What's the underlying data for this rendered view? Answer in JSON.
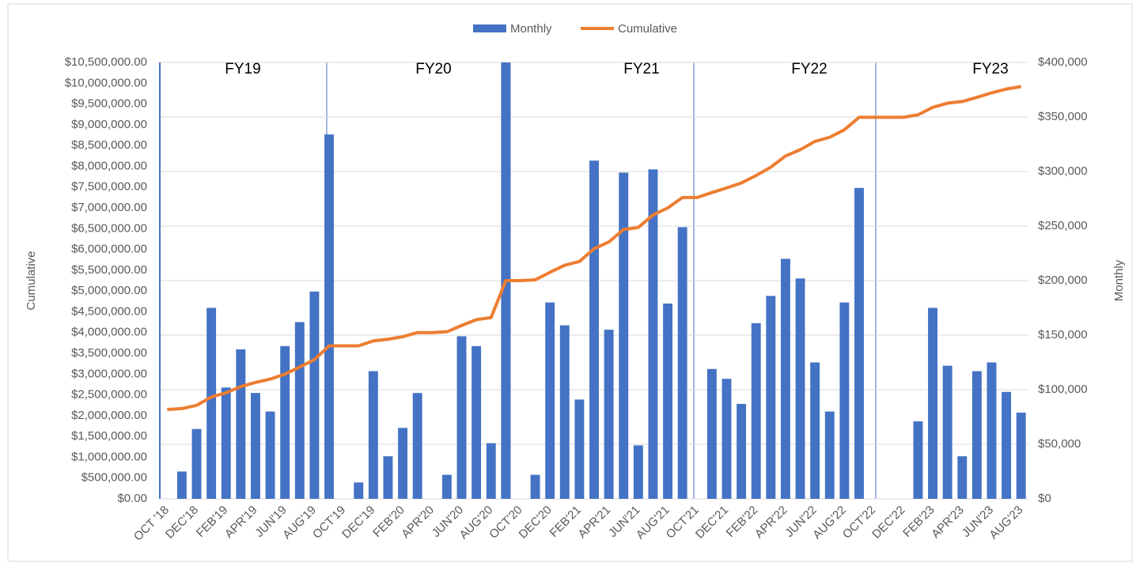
{
  "chart_data": {
    "type": "bar_line",
    "categories": [
      "OCT '18",
      null,
      "DEC'18",
      null,
      "FEB'19",
      null,
      "APR'19",
      null,
      "JUN'19",
      null,
      "AUG'19",
      null,
      "OCT'19",
      null,
      "DEC'19",
      null,
      "FEB'20",
      null,
      "APR'20",
      null,
      "JUN'20",
      null,
      "AUG'20",
      null,
      "OCT'20",
      null,
      "DEC'20",
      null,
      "FEB'21",
      null,
      "APR'21",
      null,
      "JUN'21",
      null,
      "AUG'21",
      null,
      "OCT'21",
      null,
      "DEC'21",
      null,
      "FEB'22",
      null,
      "APR'22",
      null,
      "JUN'22",
      null,
      "AUG'22",
      null,
      "OCT'22",
      null,
      "DEC'22",
      null,
      "FEB'23",
      null,
      "APR'23",
      null,
      "JUN'23",
      null,
      "AUG'23"
    ],
    "series": [
      {
        "name": "Monthly",
        "color": "#4472c4",
        "kind": "bar",
        "axis": "y2",
        "values": [
          0,
          25000,
          64000,
          175000,
          102000,
          137000,
          97000,
          80000,
          140000,
          162000,
          190000,
          334000,
          0,
          15000,
          117000,
          39000,
          65000,
          97000,
          0,
          22000,
          149000,
          140000,
          51000,
          400000,
          0,
          22000,
          180000,
          159000,
          91000,
          310000,
          155000,
          299000,
          49000,
          302000,
          179000,
          249000,
          0,
          119000,
          110000,
          87000,
          161000,
          186000,
          220000,
          202000,
          125000,
          80000,
          180000,
          285000,
          0,
          0,
          0,
          71000,
          175000,
          122000,
          39000,
          117000,
          125000,
          98000,
          79000
        ]
      },
      {
        "name": "Cumulative",
        "color": "#ed7d31",
        "kind": "line",
        "values": [
          2150000,
          2170000,
          2250000,
          2450000,
          2550000,
          2700000,
          2800000,
          2880000,
          3000000,
          3170000,
          3350000,
          3680000,
          3680000,
          3680000,
          3800000,
          3840000,
          3900000,
          4000000,
          4000000,
          4020000,
          4170000,
          4310000,
          4360000,
          5250000,
          5250000,
          5270000,
          5450000,
          5620000,
          5710000,
          6020000,
          6180000,
          6480000,
          6530000,
          6830000,
          7000000,
          7250000,
          7250000,
          7370000,
          7480000,
          7600000,
          7780000,
          7980000,
          8250000,
          8400000,
          8600000,
          8700000,
          8880000,
          9180000,
          9180000,
          9180000,
          9180000,
          9240000,
          9420000,
          9520000,
          9560000,
          9660000,
          9770000,
          9860000,
          9920000
        ]
      }
    ],
    "ylabel": "Cumulative",
    "y2label": "Monthly",
    "ylim": [
      0,
      10500000
    ],
    "yticks": [
      {
        "value": 0,
        "label": "$0.00"
      },
      {
        "value": 500000,
        "label": "$500,000.00"
      },
      {
        "value": 1000000,
        "label": "$1,000,000.00"
      },
      {
        "value": 1500000,
        "label": "$1,500,000.00"
      },
      {
        "value": 2000000,
        "label": "$2,000,000.00"
      },
      {
        "value": 2500000,
        "label": "$2,500,000.00"
      },
      {
        "value": 3000000,
        "label": "$3,000,000.00"
      },
      {
        "value": 3500000,
        "label": "$3,500,000.00"
      },
      {
        "value": 4000000,
        "label": "$4,000,000.00"
      },
      {
        "value": 4500000,
        "label": "$4,500,000.00"
      },
      {
        "value": 5000000,
        "label": "$5,000,000.00"
      },
      {
        "value": 5500000,
        "label": "$5,500,000.00"
      },
      {
        "value": 6000000,
        "label": "$6,000,000.00"
      },
      {
        "value": 6500000,
        "label": "$6,500,000.00"
      },
      {
        "value": 7000000,
        "label": "$7,000,000.00"
      },
      {
        "value": 7500000,
        "label": "$7,500,000.00"
      },
      {
        "value": 8000000,
        "label": "$8,000,000.00"
      },
      {
        "value": 8500000,
        "label": "$8,500,000.00"
      },
      {
        "value": 9000000,
        "label": "$9,000,000.00"
      },
      {
        "value": 9500000,
        "label": "$9,500,000.00"
      },
      {
        "value": 10000000,
        "label": "$10,000,000.00"
      },
      {
        "value": 10500000,
        "label": "$10,500,000.00"
      }
    ],
    "y2lim": [
      0,
      400000
    ],
    "y2ticks": [
      {
        "value": 0,
        "label": "$0"
      },
      {
        "value": 50000,
        "label": "$50,000"
      },
      {
        "value": 100000,
        "label": "$100,000"
      },
      {
        "value": 150000,
        "label": "$150,000"
      },
      {
        "value": 200000,
        "label": "$200,000"
      },
      {
        "value": 250000,
        "label": "$250,000"
      },
      {
        "value": 300000,
        "label": "$300,000"
      },
      {
        "value": 350000,
        "label": "$350,000"
      },
      {
        "value": 400000,
        "label": "$400,000"
      }
    ],
    "grid": true,
    "legend": "top",
    "annotations": [
      "FY19",
      "FY20",
      "FY21",
      "FY22",
      "FY23"
    ]
  }
}
